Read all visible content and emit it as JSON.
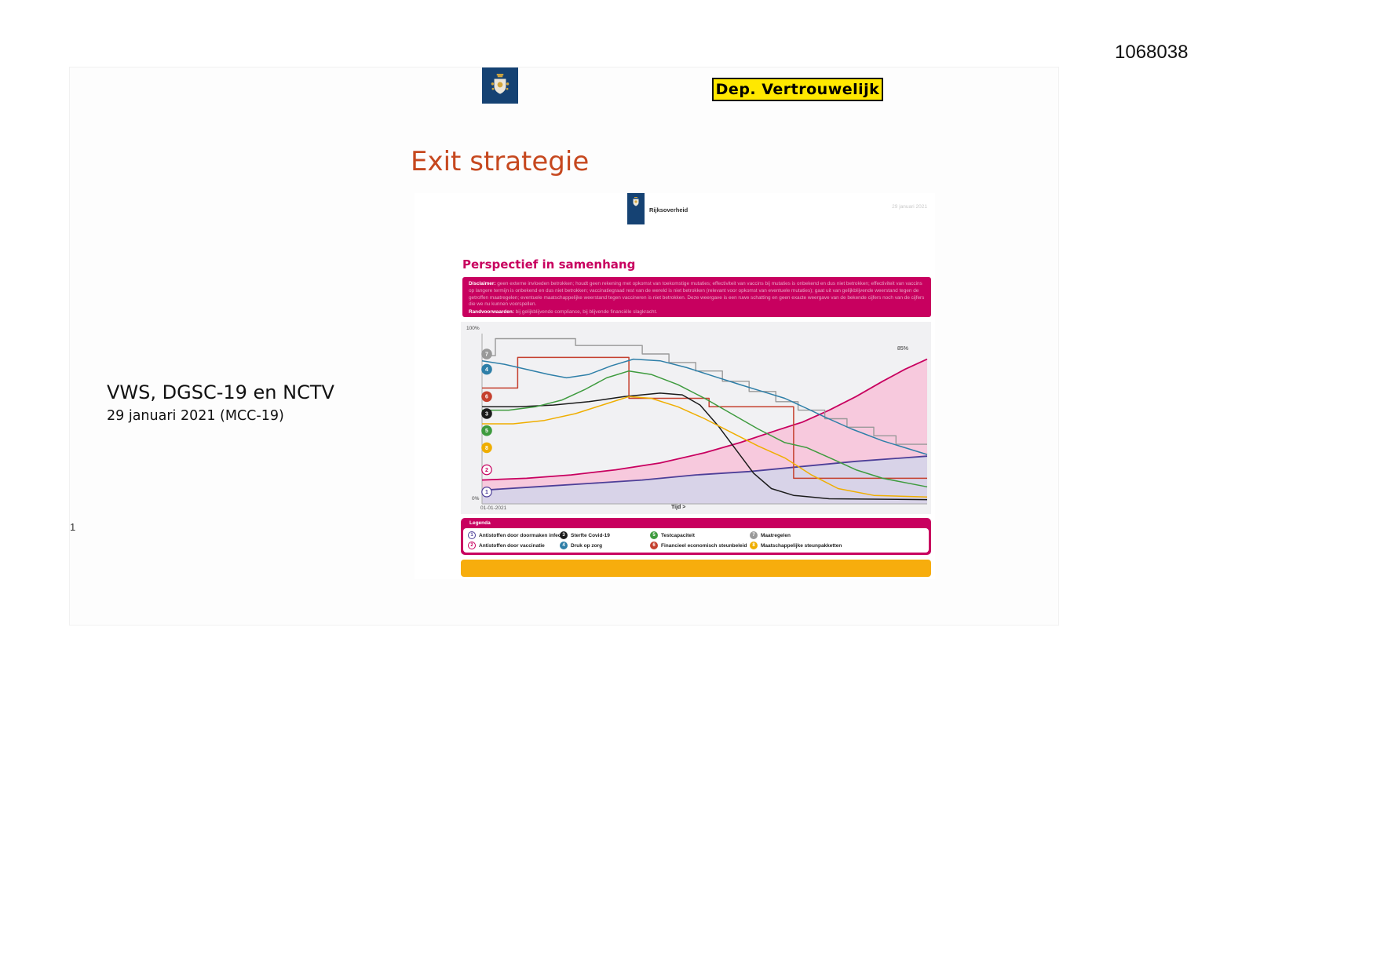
{
  "doc": {
    "number": "1068038",
    "classification": "Dep. Vertrouwelijk",
    "page_number": "1"
  },
  "slide": {
    "title": "Exit strategie",
    "author_line": "VWS, DGSC-19 en NCTV",
    "date_line": "29 januari 2021 (MCC-19)"
  },
  "embedded": {
    "logo_text": "Rijksoverheid",
    "date_note": "29 januari 2021",
    "header": "Perspectief in samenhang",
    "disclaimer_label": "Disclaimer:",
    "disclaimer_text": "geen externe invloeden betrokken; houdt geen rekening met opkomst van toekomstige mutaties; effectiviteit van vaccins bij mutaties is onbekend en dus niet betrokken; effectiviteit van vaccins op langere termijn is onbekend en dus niet betrokken; vaccinatiegraad rest van de wereld is niet betrokken (relevant voor opkomst van eventuele mutaties); gaat uit van gelijkblijvende weerstand tegen de getroffen maatregelen; eventuele maatschappelijke weerstand tegen vaccineren is niet betrokken. Deze weergave is een ruwe schatting en geen exacte weergave van de bekende cijfers noch van de cijfers die we nu kunnen voorspellen.",
    "randvoorwaarden_label": "Randvoorwaarden:",
    "randvoorwaarden_text": "bij gelijkblijvende compliance, bij blijvende financiële slagkracht.",
    "legend_title": "Legenda"
  },
  "colors": {
    "brand_magenta": "#c8005f",
    "logo_blue": "#154273",
    "badge_yellow": "#ffe800",
    "title_orange": "#c6481f",
    "footer_bar": "#f7ad0d"
  },
  "chart_data": {
    "type": "line",
    "title": "Perspectief in samenhang",
    "x_axis": {
      "start_label": "01-01-2021",
      "label": "Tijd >"
    },
    "y_axis": {
      "top": "100%",
      "bottom": "0%",
      "range": [
        0,
        100
      ]
    },
    "end_annotation": {
      "series": "Antistoffen door vaccinatie",
      "label": "85%",
      "value": 85
    },
    "legend_rows": [
      [
        1,
        3,
        5,
        7
      ],
      [
        2,
        4,
        6,
        8
      ]
    ],
    "series": [
      {
        "id": 1,
        "name": "Antistoffen door doormaken infectie",
        "color": "#4d3f98",
        "fill": "#d8d3e8",
        "outline_icon": true,
        "marker_pct": 7,
        "draw": 2,
        "width": 1.8,
        "points": [
          [
            0,
            8
          ],
          [
            12,
            10
          ],
          [
            24,
            12
          ],
          [
            36,
            14
          ],
          [
            48,
            17
          ],
          [
            60,
            19
          ],
          [
            72,
            22
          ],
          [
            84,
            25
          ],
          [
            100,
            28
          ]
        ]
      },
      {
        "id": 2,
        "name": "Antistoffen door vaccinatie",
        "color": "#c8005f",
        "fill": "#f7c9dd",
        "outline_icon": true,
        "marker_pct": 20,
        "draw": 1,
        "width": 1.8,
        "points": [
          [
            0,
            14
          ],
          [
            10,
            15
          ],
          [
            20,
            17
          ],
          [
            30,
            20
          ],
          [
            40,
            24
          ],
          [
            50,
            30
          ],
          [
            58,
            36
          ],
          [
            66,
            43
          ],
          [
            72,
            48
          ],
          [
            78,
            55
          ],
          [
            84,
            63
          ],
          [
            90,
            72
          ],
          [
            95,
            79
          ],
          [
            100,
            85
          ]
        ]
      },
      {
        "id": 3,
        "name": "Sterfte Covid-19",
        "color": "#1b1b1b",
        "outline_icon": false,
        "marker_pct": 53,
        "draw": 6,
        "width": 1.5,
        "points": [
          [
            0,
            57
          ],
          [
            8,
            57
          ],
          [
            16,
            58
          ],
          [
            24,
            60
          ],
          [
            32,
            63
          ],
          [
            40,
            65
          ],
          [
            45,
            64
          ],
          [
            49,
            58
          ],
          [
            53,
            46
          ],
          [
            57,
            32
          ],
          [
            61,
            18
          ],
          [
            65,
            9
          ],
          [
            70,
            5
          ],
          [
            78,
            3
          ],
          [
            100,
            2.5
          ]
        ]
      },
      {
        "id": 4,
        "name": "Druk op zorg",
        "color": "#2e7fa8",
        "outline_icon": false,
        "marker_pct": 79,
        "draw": 5,
        "width": 1.5,
        "points": [
          [
            0,
            84
          ],
          [
            5,
            82
          ],
          [
            10,
            79
          ],
          [
            15,
            76
          ],
          [
            19,
            74
          ],
          [
            24,
            76
          ],
          [
            29,
            81
          ],
          [
            34,
            85
          ],
          [
            40,
            84
          ],
          [
            46,
            80
          ],
          [
            52,
            75
          ],
          [
            58,
            70
          ],
          [
            63,
            66
          ],
          [
            68,
            62
          ],
          [
            73,
            56
          ],
          [
            77,
            51
          ],
          [
            83,
            44
          ],
          [
            90,
            37
          ],
          [
            100,
            29
          ]
        ]
      },
      {
        "id": 5,
        "name": "Testcapaciteit",
        "color": "#3e9b3e",
        "outline_icon": false,
        "marker_pct": 43,
        "draw": 7,
        "width": 1.5,
        "points": [
          [
            0,
            55
          ],
          [
            6,
            55
          ],
          [
            12,
            57
          ],
          [
            18,
            61
          ],
          [
            23,
            67
          ],
          [
            28,
            74
          ],
          [
            33,
            78
          ],
          [
            38,
            76
          ],
          [
            44,
            70
          ],
          [
            50,
            62
          ],
          [
            56,
            53
          ],
          [
            62,
            44
          ],
          [
            68,
            36
          ],
          [
            73,
            33
          ],
          [
            79,
            26
          ],
          [
            84,
            20
          ],
          [
            90,
            15
          ],
          [
            100,
            10
          ]
        ]
      },
      {
        "id": 6,
        "name": "Financieel economisch steunbeleid",
        "color": "#c5402e",
        "outline_icon": false,
        "marker_pct": 63,
        "draw": 4,
        "width": 1.5,
        "step": true,
        "points": [
          [
            0,
            68
          ],
          [
            8,
            68
          ],
          [
            8,
            86
          ],
          [
            33,
            86
          ],
          [
            33,
            62
          ],
          [
            51,
            62
          ],
          [
            51,
            57
          ],
          [
            70,
            57
          ],
          [
            70,
            15
          ],
          [
            100,
            15
          ]
        ]
      },
      {
        "id": 7,
        "name": "Maatregelen",
        "color": "#999999",
        "outline_icon": false,
        "marker_pct": 88,
        "draw": 3,
        "width": 1.4,
        "step": true,
        "points": [
          [
            0,
            87
          ],
          [
            3,
            87
          ],
          [
            3,
            97
          ],
          [
            21,
            97
          ],
          [
            21,
            93
          ],
          [
            36,
            93
          ],
          [
            36,
            88
          ],
          [
            42,
            88
          ],
          [
            42,
            83
          ],
          [
            48,
            83
          ],
          [
            48,
            78
          ],
          [
            54,
            78
          ],
          [
            54,
            72
          ],
          [
            60,
            72
          ],
          [
            60,
            66
          ],
          [
            66,
            66
          ],
          [
            66,
            60
          ],
          [
            71,
            60
          ],
          [
            71,
            55
          ],
          [
            77,
            55
          ],
          [
            77,
            50
          ],
          [
            82,
            50
          ],
          [
            82,
            45
          ],
          [
            88,
            45
          ],
          [
            88,
            40
          ],
          [
            93,
            40
          ],
          [
            93,
            35
          ],
          [
            100,
            35
          ]
        ]
      },
      {
        "id": 8,
        "name": "Maatschappelijke steunpakketten",
        "color": "#efae00",
        "outline_icon": false,
        "marker_pct": 33,
        "draw": 8,
        "width": 1.5,
        "points": [
          [
            0,
            47
          ],
          [
            7,
            47
          ],
          [
            14,
            49
          ],
          [
            21,
            53
          ],
          [
            27,
            58
          ],
          [
            33,
            63
          ],
          [
            38,
            62
          ],
          [
            44,
            57
          ],
          [
            50,
            50
          ],
          [
            56,
            42
          ],
          [
            62,
            34
          ],
          [
            68,
            27
          ],
          [
            74,
            17
          ],
          [
            80,
            9
          ],
          [
            88,
            5
          ],
          [
            100,
            4
          ]
        ]
      }
    ]
  }
}
